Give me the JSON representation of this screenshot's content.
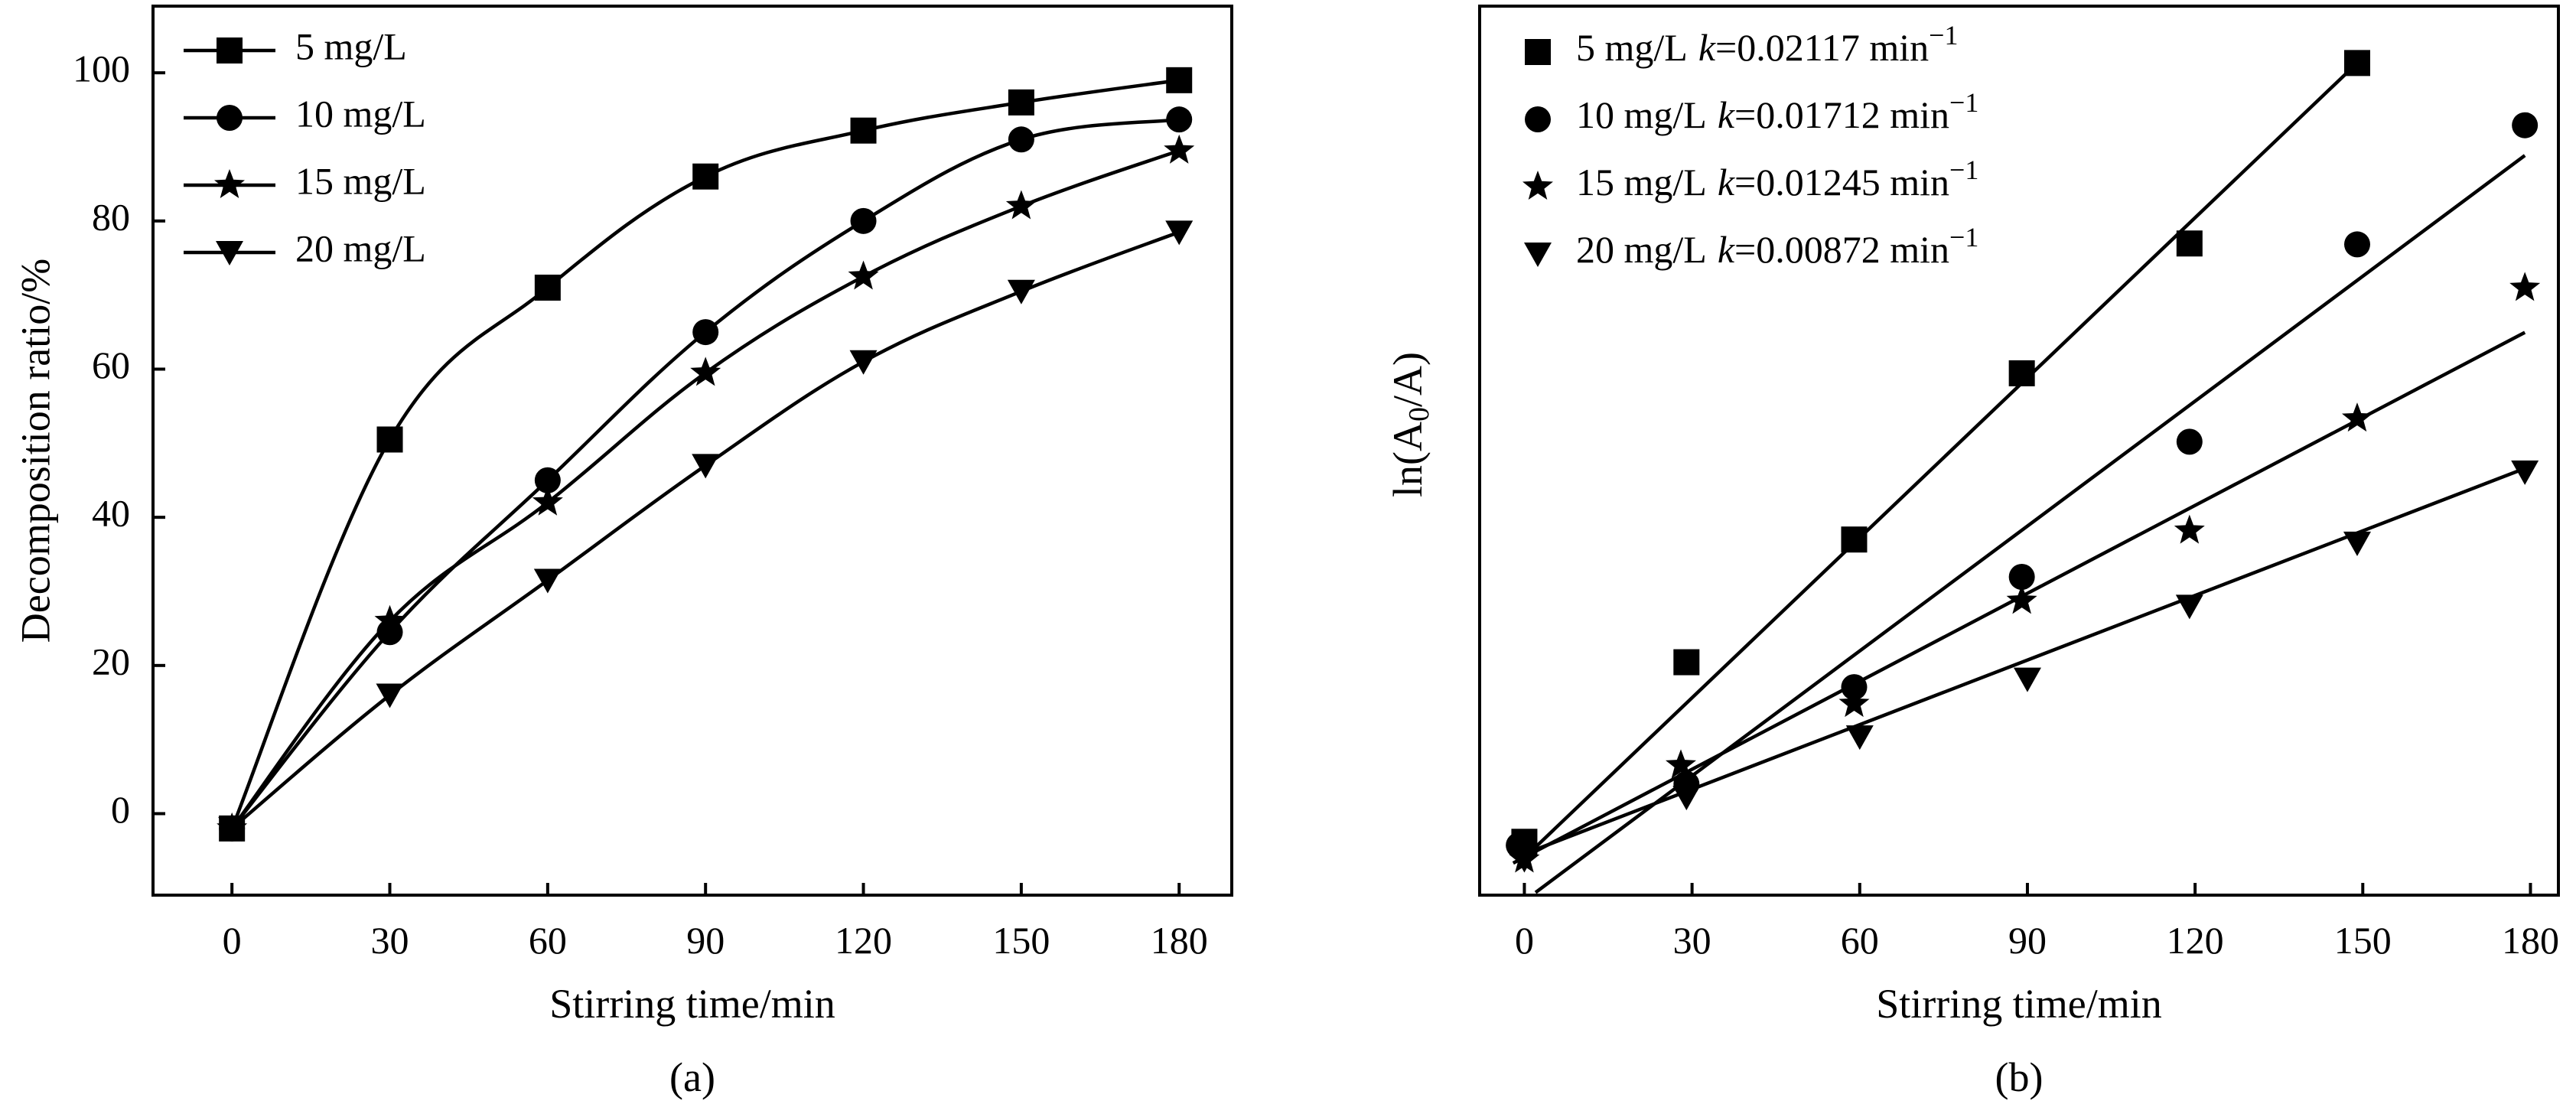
{
  "chart_data": [
    {
      "type": "line",
      "xlabel": "Stirring time/min",
      "ylabel": "Decomposition ratio/%",
      "caption": "(a)",
      "xlim": [
        -15,
        190
      ],
      "ylim": [
        -11,
        109
      ],
      "xticks": [
        0,
        30,
        60,
        90,
        120,
        150,
        180
      ],
      "yticks": [
        0,
        20,
        40,
        60,
        80,
        100
      ],
      "legend_position": "top-left",
      "series": [
        {
          "name": "5 mg/L",
          "marker": "square",
          "x": [
            0,
            30,
            60,
            90,
            120,
            150,
            180
          ],
          "y": [
            -2,
            50.5,
            71,
            86,
            92.2,
            96,
            99
          ]
        },
        {
          "name": "10 mg/L",
          "marker": "circle",
          "x": [
            0,
            30,
            60,
            90,
            120,
            150,
            180
          ],
          "y": [
            -2,
            24.5,
            45,
            65,
            80,
            91,
            93.7
          ]
        },
        {
          "name": "15 mg/L",
          "marker": "star",
          "x": [
            0,
            30,
            60,
            90,
            120,
            150,
            180
          ],
          "y": [
            -2,
            26,
            42,
            59.5,
            72.5,
            82,
            89.5
          ]
        },
        {
          "name": "20 mg/L",
          "marker": "triangle-down",
          "x": [
            0,
            30,
            60,
            90,
            120,
            150,
            180
          ],
          "y": [
            -2,
            16,
            31.5,
            47,
            61,
            70.5,
            78.5
          ]
        }
      ]
    },
    {
      "type": "scatter",
      "xlabel": "Stirring time/min",
      "ylabel_prefix": "ln(A",
      "ylabel_sub": "0",
      "ylabel_suffix": "/A)",
      "caption": "(b)",
      "xlim": [
        -8,
        185
      ],
      "ylim": [
        0,
        1
      ],
      "xticks": [
        0,
        30,
        60,
        90,
        120,
        150,
        180
      ],
      "legend_position": "top-left",
      "series": [
        {
          "name": "5 mg/L",
          "k_label": "k",
          "k_value": "=0.02117 min",
          "k_unit_sup": "−1",
          "marker": "square",
          "x": [
            0,
            29,
            59,
            89,
            119,
            149
          ],
          "y": [
            0.06,
            0.262,
            0.4,
            0.587,
            0.733,
            0.936
          ],
          "fit_x": [
            0,
            149
          ],
          "fit_y": [
            0.042,
            0.936
          ]
        },
        {
          "name": "10 mg/L",
          "k_label": "k",
          "k_value": "=0.01712 min",
          "k_unit_sup": "−1",
          "marker": "circle",
          "x": [
            -1,
            29,
            59,
            89,
            119,
            149,
            179
          ],
          "y": [
            0.056,
            0.125,
            0.234,
            0.358,
            0.51,
            0.732,
            0.866
          ],
          "fit_x": [
            2,
            179
          ],
          "fit_y": [
            0.003,
            0.832
          ]
        },
        {
          "name": "15 mg/L",
          "k_label": "k",
          "k_value": "=0.01245 min",
          "k_unit_sup": "−1",
          "marker": "star",
          "x": [
            0,
            28,
            59,
            89,
            119,
            149,
            179
          ],
          "y": [
            0.04,
            0.146,
            0.215,
            0.331,
            0.41,
            0.536,
            0.683
          ],
          "fit_x": [
            -2,
            179
          ],
          "fit_y": [
            0.036,
            0.633
          ]
        },
        {
          "name": "20 mg/L",
          "k_label": "k",
          "k_value": "=0.00872 min",
          "k_unit_sup": "−1",
          "marker": "triangle-down",
          "x": [
            0,
            29,
            60,
            90,
            119,
            149,
            179
          ],
          "y": [
            0.04,
            0.11,
            0.178,
            0.243,
            0.325,
            0.396,
            0.476
          ],
          "fit_x": [
            -1,
            179
          ],
          "fit_y": [
            0.044,
            0.48
          ]
        }
      ]
    }
  ]
}
